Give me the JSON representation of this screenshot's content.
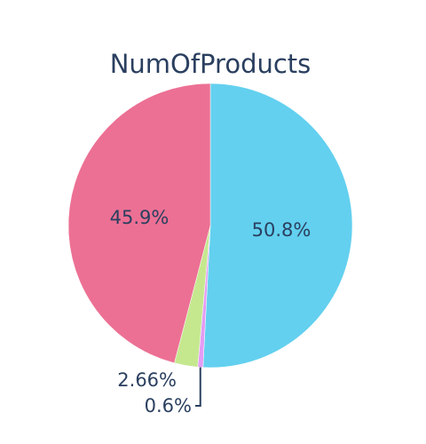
{
  "chart_data": {
    "type": "pie",
    "title": "NumOfProducts",
    "slices": [
      {
        "label": "50.8%",
        "value": 50.8,
        "color": "#63d0ef"
      },
      {
        "label": "0.6%",
        "value": 0.6,
        "color": "#e49cf4"
      },
      {
        "label": "2.66%",
        "value": 2.66,
        "color": "#c5e88f"
      },
      {
        "label": "45.9%",
        "value": 45.9,
        "color": "#ec7094"
      }
    ],
    "direction": "clockwise",
    "start": "top"
  }
}
